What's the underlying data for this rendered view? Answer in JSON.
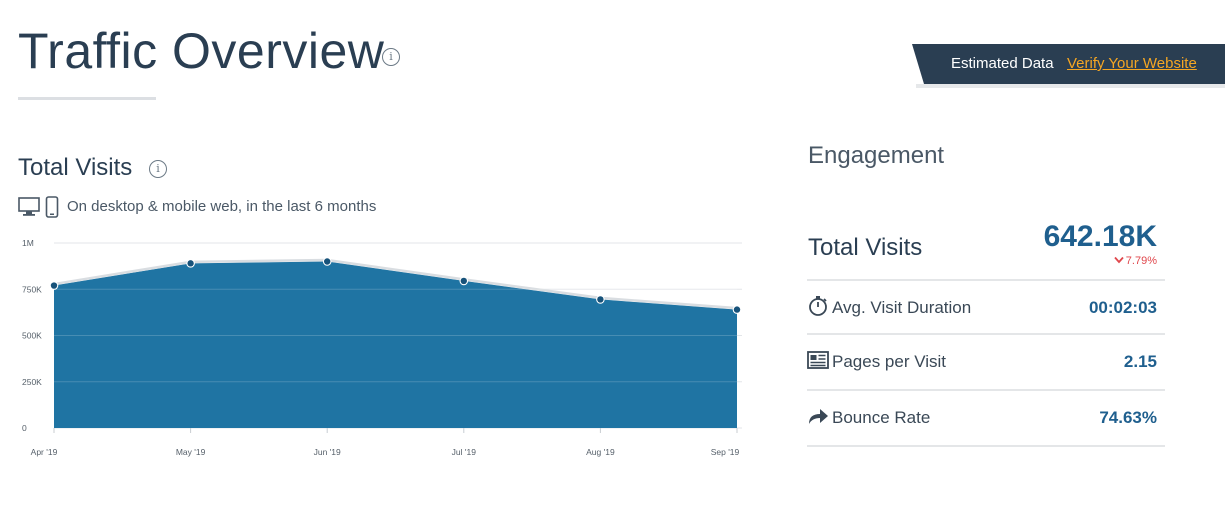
{
  "header": {
    "title": "Traffic Overview",
    "info_icon": "info-icon"
  },
  "banner": {
    "text": "Estimated Data",
    "link": "Verify Your Website",
    "background": "#2a3e52",
    "link_color": "#f5a623"
  },
  "total_visits_section": {
    "title": "Total Visits",
    "device_icons": [
      "desktop-icon",
      "mobile-icon"
    ],
    "subtitle": "On desktop & mobile web, in the last 6 months"
  },
  "chart_data": {
    "type": "area",
    "title": "",
    "xlabel": "",
    "ylabel": "",
    "x": [
      "Apr '19",
      "May '19",
      "Jun '19",
      "Jul '19",
      "Aug '19",
      "Sep '19"
    ],
    "series": [
      {
        "values": [
          770000,
          890000,
          900000,
          795000,
          695000,
          640000
        ],
        "color": "#1f74a3"
      }
    ],
    "ylim": [
      0,
      1000000
    ],
    "yticks": [
      0,
      250000,
      500000,
      750000,
      1000000
    ],
    "ytick_labels": [
      "0",
      "250K",
      "500K",
      "750K",
      "1M"
    ],
    "grid": true
  },
  "engagement": {
    "title": "Engagement",
    "total_visits": {
      "label": "Total Visits",
      "value": "642.18K",
      "change": "7.79%",
      "change_direction": "down",
      "change_color": "#e0474c"
    },
    "metrics": [
      {
        "icon": "stopwatch-icon",
        "label": "Avg. Visit Duration",
        "value": "00:02:03"
      },
      {
        "icon": "pages-icon",
        "label": "Pages per Visit",
        "value": "2.15"
      },
      {
        "icon": "bounce-arrow-icon",
        "label": "Bounce Rate",
        "value": "74.63%"
      }
    ],
    "value_color": "#1f5f8e"
  }
}
